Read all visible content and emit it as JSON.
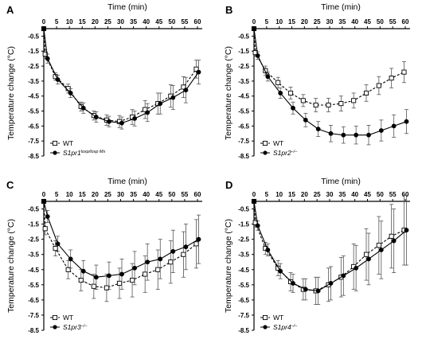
{
  "figure": {
    "panels": [
      {
        "letter": "A",
        "legend": {
          "wt": "WT",
          "ko_base": "S1pr1",
          "ko_sup": "loxp/loxp Mx"
        }
      },
      {
        "letter": "B",
        "legend": {
          "wt": "WT",
          "ko_base": "S1pr2",
          "ko_sup": "–/–"
        }
      },
      {
        "letter": "C",
        "legend": {
          "wt": "WT",
          "ko_base": "S1pr3",
          "ko_sup": "–/–"
        }
      },
      {
        "letter": "D",
        "legend": {
          "wt": "WT",
          "ko_base": "S1pr4",
          "ko_sup": "–/–"
        }
      }
    ]
  },
  "chart_data": [
    {
      "type": "line",
      "xlabel": "Time (min)",
      "ylabel": "Temperature change (°C)",
      "xlim": [
        0,
        60
      ],
      "ylim": [
        -8.5,
        0
      ],
      "xticks": [
        0,
        5,
        10,
        15,
        20,
        25,
        30,
        35,
        40,
        45,
        50,
        55,
        60
      ],
      "yticks": [
        -0.5,
        -1.5,
        -2.5,
        -3.5,
        -4.5,
        -5.5,
        -6.5,
        -7.5,
        -8.5
      ],
      "legend_position": "bottom-left",
      "x": [
        0,
        1,
        5,
        10,
        15,
        20,
        25,
        30,
        35,
        40,
        45,
        50,
        55,
        60
      ],
      "series": [
        {
          "name": "WT",
          "marker": "open-square",
          "line": "dashed",
          "values": [
            0,
            -1.7,
            -3.2,
            -4.0,
            -5.2,
            -5.8,
            -6.1,
            -6.2,
            -5.9,
            -5.4,
            -5.0,
            -4.5,
            -3.9,
            -2.7
          ],
          "errors": [
            0,
            0.3,
            0.25,
            0.3,
            0.3,
            0.3,
            0.35,
            0.4,
            0.5,
            0.6,
            0.7,
            0.75,
            0.7,
            0.6
          ]
        },
        {
          "name": "S1pr1 loxp/loxp Mx",
          "marker": "filled-circle",
          "line": "solid",
          "values": [
            0,
            -2.0,
            -3.4,
            -4.3,
            -5.3,
            -5.9,
            -6.2,
            -6.3,
            -6.0,
            -5.6,
            -5.0,
            -4.6,
            -4.1,
            -2.9
          ],
          "errors": [
            0,
            0.3,
            0.3,
            0.3,
            0.35,
            0.35,
            0.35,
            0.4,
            0.5,
            0.6,
            0.7,
            0.8,
            0.85,
            0.8
          ]
        }
      ]
    },
    {
      "type": "line",
      "xlabel": "Time (min)",
      "ylabel": "Temperature change (°C)",
      "xlim": [
        0,
        60
      ],
      "ylim": [
        -8.5,
        0
      ],
      "xticks": [
        0,
        5,
        10,
        15,
        20,
        25,
        30,
        35,
        40,
        45,
        50,
        55,
        60
      ],
      "yticks": [
        -0.5,
        -1.5,
        -2.5,
        -3.5,
        -4.5,
        -5.5,
        -6.5,
        -7.5,
        -8.5
      ],
      "legend_position": "bottom-left",
      "x": [
        0,
        1,
        5,
        10,
        15,
        20,
        25,
        30,
        35,
        40,
        45,
        50,
        55,
        60
      ],
      "series": [
        {
          "name": "WT",
          "marker": "open-square",
          "line": "dashed",
          "values": [
            0,
            -1.6,
            -2.8,
            -3.6,
            -4.3,
            -4.8,
            -5.1,
            -5.1,
            -5.0,
            -4.8,
            -4.3,
            -3.8,
            -3.3,
            -2.9
          ],
          "errors": [
            0,
            0.25,
            0.3,
            0.35,
            0.4,
            0.4,
            0.45,
            0.45,
            0.5,
            0.5,
            0.55,
            0.6,
            0.65,
            0.7
          ]
        },
        {
          "name": "S1pr2 –/–",
          "marker": "filled-circle",
          "line": "solid",
          "values": [
            0,
            -1.8,
            -3.2,
            -4.3,
            -5.3,
            -6.1,
            -6.7,
            -7.0,
            -7.1,
            -7.1,
            -7.1,
            -6.8,
            -6.5,
            -6.2
          ],
          "errors": [
            0,
            0.25,
            0.3,
            0.35,
            0.4,
            0.45,
            0.5,
            0.55,
            0.55,
            0.6,
            0.65,
            0.7,
            0.75,
            0.8
          ]
        }
      ]
    },
    {
      "type": "line",
      "xlabel": "Time (min)",
      "ylabel": "Temperature change (°C)",
      "xlim": [
        0,
        60
      ],
      "ylim": [
        -8.5,
        0
      ],
      "xticks": [
        0,
        5,
        10,
        15,
        20,
        25,
        30,
        35,
        40,
        45,
        50,
        55,
        60
      ],
      "yticks": [
        -0.5,
        -1.5,
        -2.5,
        -3.5,
        -4.5,
        -5.5,
        -6.5,
        -7.5,
        -8.5
      ],
      "legend_position": "bottom-left",
      "x": [
        0,
        1,
        5,
        10,
        15,
        20,
        25,
        30,
        35,
        40,
        45,
        50,
        55,
        60
      ],
      "series": [
        {
          "name": "WT",
          "marker": "open-square",
          "line": "dashed",
          "values": [
            0,
            -1.8,
            -3.1,
            -4.5,
            -5.2,
            -5.6,
            -5.7,
            -5.4,
            -5.2,
            -4.8,
            -4.5,
            -4.0,
            -3.5,
            -2.8
          ],
          "errors": [
            0,
            0.4,
            0.5,
            0.6,
            0.7,
            0.8,
            0.9,
            1.0,
            1.1,
            1.2,
            1.3,
            1.4,
            1.5,
            1.6
          ]
        },
        {
          "name": "S1pr3 –/–",
          "marker": "filled-circle",
          "line": "solid",
          "values": [
            0,
            -1.0,
            -2.8,
            -3.8,
            -4.6,
            -5.0,
            -4.9,
            -4.8,
            -4.4,
            -4.0,
            -3.8,
            -3.3,
            -3.0,
            -2.5
          ],
          "errors": [
            0,
            0.4,
            0.5,
            0.6,
            0.7,
            0.8,
            0.9,
            1.0,
            1.1,
            1.2,
            1.3,
            1.4,
            1.5,
            1.6
          ]
        }
      ]
    },
    {
      "type": "line",
      "xlabel": "Time (min)",
      "ylabel": "Temperature change (°C)",
      "xlim": [
        0,
        60
      ],
      "ylim": [
        -8.5,
        0
      ],
      "xticks": [
        0,
        5,
        10,
        15,
        20,
        25,
        30,
        35,
        40,
        45,
        50,
        55,
        60
      ],
      "yticks": [
        -0.5,
        -1.5,
        -2.5,
        -3.5,
        -4.5,
        -5.5,
        -6.5,
        -7.5,
        -8.5
      ],
      "legend_position": "bottom-left",
      "x": [
        0,
        1,
        5,
        10,
        15,
        20,
        25,
        30,
        35,
        40,
        45,
        50,
        55,
        60
      ],
      "series": [
        {
          "name": "WT",
          "marker": "open-square",
          "line": "dashed",
          "values": [
            0,
            -1.4,
            -3.1,
            -4.4,
            -5.3,
            -5.8,
            -5.9,
            -5.5,
            -5.0,
            -4.3,
            -3.5,
            -2.9,
            -2.3,
            -1.9
          ],
          "errors": [
            0,
            0.3,
            0.4,
            0.5,
            0.6,
            0.7,
            0.9,
            1.1,
            1.3,
            1.5,
            1.7,
            1.9,
            2.1,
            2.3
          ]
        },
        {
          "name": "S1pr4 –/–",
          "marker": "filled-circle",
          "line": "solid",
          "values": [
            0,
            -1.6,
            -3.2,
            -4.6,
            -5.4,
            -5.8,
            -5.9,
            -5.4,
            -4.9,
            -4.4,
            -3.8,
            -3.2,
            -2.6,
            -1.9
          ],
          "errors": [
            0,
            0.3,
            0.4,
            0.5,
            0.6,
            0.7,
            0.9,
            1.1,
            1.3,
            1.5,
            1.7,
            1.9,
            2.1,
            2.3
          ]
        }
      ]
    }
  ]
}
